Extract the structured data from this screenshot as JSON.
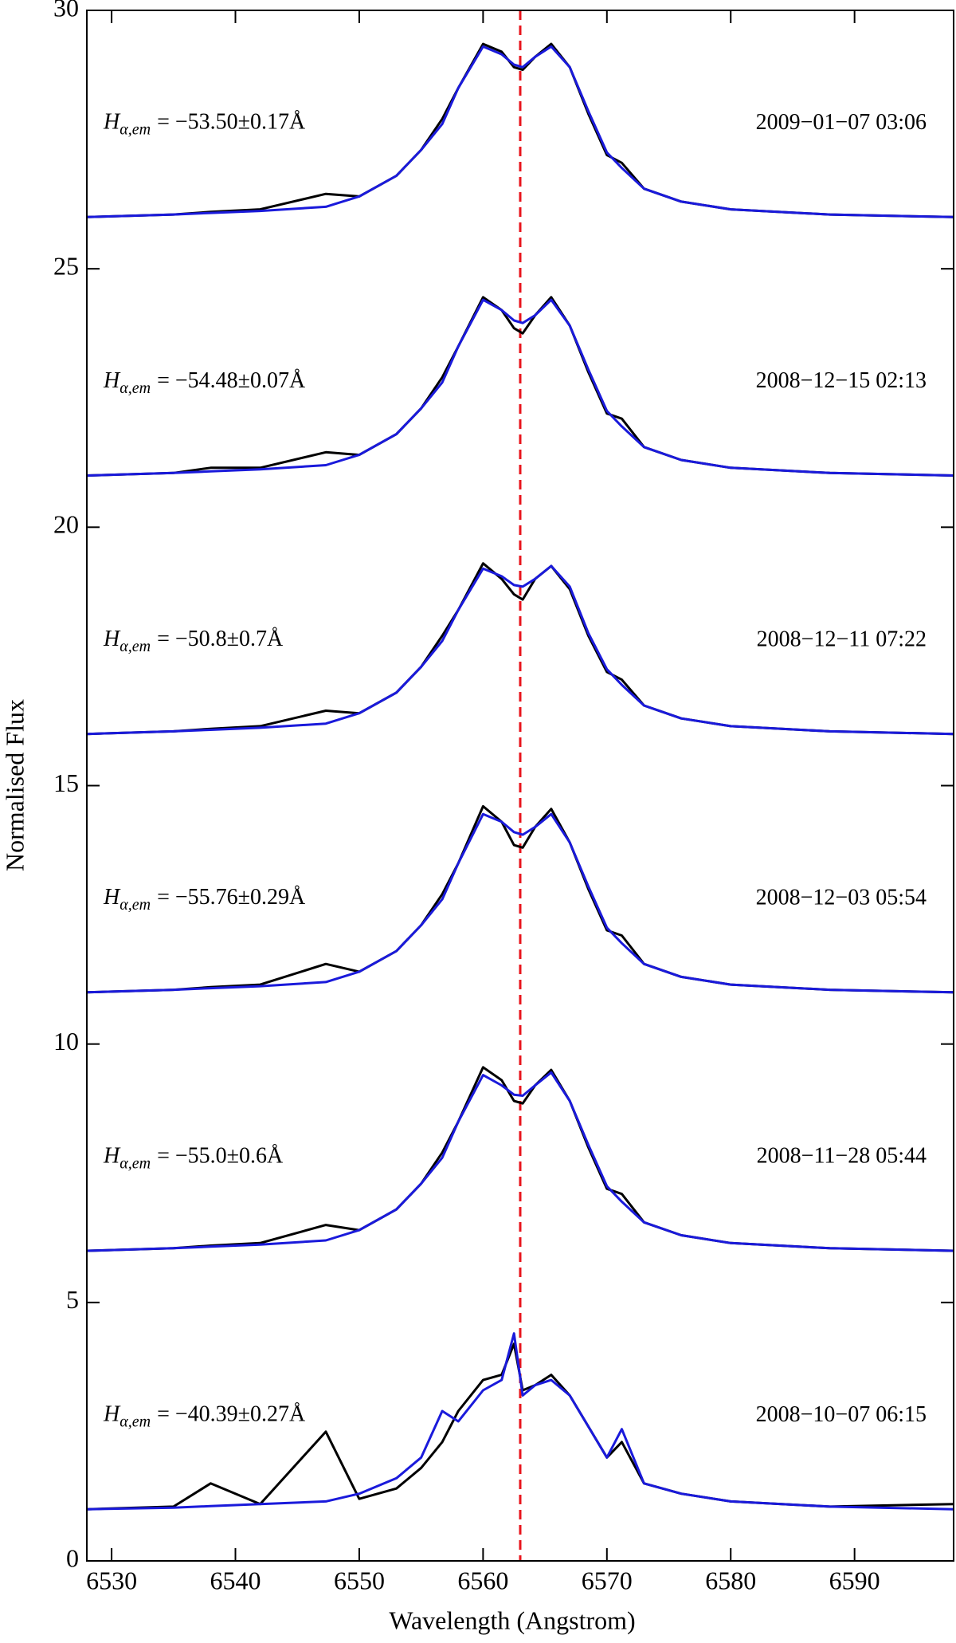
{
  "chart_data": {
    "type": "line",
    "xlabel": "Wavelength (Angstrom)",
    "ylabel": "Normalised Flux",
    "xlim": [
      6528,
      6598
    ],
    "ylim": [
      0,
      30
    ],
    "xticks": [
      6530,
      6540,
      6550,
      6560,
      6570,
      6580,
      6590
    ],
    "yticks": [
      0,
      5,
      10,
      15,
      20,
      25,
      30
    ],
    "reference_line": {
      "x": 6563,
      "color": "#e8141c"
    },
    "x": [
      6528,
      6535,
      6538,
      6542,
      6547.3,
      6550,
      6553,
      6555,
      6556.7,
      6558,
      6560,
      6561.5,
      6562.5,
      6563.2,
      6564.2,
      6565.5,
      6567,
      6568.5,
      6570,
      6571.2,
      6573,
      6576,
      6580,
      6588,
      6598
    ],
    "series": [
      {
        "color": "#000000",
        "values": [
          26.0,
          26.05,
          26.1,
          26.15,
          26.45,
          26.4,
          26.8,
          27.3,
          27.9,
          28.5,
          29.35,
          29.2,
          28.9,
          28.85,
          29.1,
          29.35,
          28.9,
          28.0,
          27.2,
          27.05,
          26.55,
          26.3,
          26.15,
          26.05,
          26.0
        ]
      },
      {
        "color": "#1a1adb",
        "values": [
          26.0,
          26.05,
          26.08,
          26.12,
          26.2,
          26.4,
          26.8,
          27.3,
          27.8,
          28.5,
          29.3,
          29.15,
          28.95,
          28.9,
          29.1,
          29.3,
          28.9,
          28.05,
          27.25,
          26.95,
          26.55,
          26.3,
          26.15,
          26.05,
          26.0
        ]
      },
      {
        "color": "#000000",
        "values": [
          21.0,
          21.05,
          21.15,
          21.15,
          21.45,
          21.4,
          21.8,
          22.3,
          22.9,
          23.5,
          24.45,
          24.2,
          23.85,
          23.75,
          24.1,
          24.45,
          23.9,
          23.0,
          22.2,
          22.1,
          21.55,
          21.3,
          21.15,
          21.05,
          21.0
        ]
      },
      {
        "color": "#1a1adb",
        "values": [
          21.0,
          21.05,
          21.08,
          21.12,
          21.2,
          21.4,
          21.8,
          22.3,
          22.8,
          23.5,
          24.4,
          24.2,
          24.0,
          23.95,
          24.1,
          24.4,
          23.9,
          23.05,
          22.25,
          21.95,
          21.55,
          21.3,
          21.15,
          21.05,
          21.0
        ]
      },
      {
        "color": "#000000",
        "values": [
          16.0,
          16.05,
          16.1,
          16.15,
          16.45,
          16.4,
          16.8,
          17.3,
          17.9,
          18.4,
          19.3,
          19.0,
          18.7,
          18.6,
          19.0,
          19.25,
          18.8,
          17.9,
          17.2,
          17.05,
          16.55,
          16.3,
          16.15,
          16.05,
          16.0
        ]
      },
      {
        "color": "#1a1adb",
        "values": [
          16.0,
          16.05,
          16.08,
          16.12,
          16.2,
          16.4,
          16.8,
          17.3,
          17.8,
          18.4,
          19.2,
          19.05,
          18.88,
          18.85,
          19.0,
          19.25,
          18.85,
          17.95,
          17.25,
          16.95,
          16.55,
          16.3,
          16.15,
          16.05,
          16.0
        ]
      },
      {
        "color": "#000000",
        "values": [
          11.0,
          11.05,
          11.1,
          11.15,
          11.55,
          11.4,
          11.8,
          12.3,
          12.9,
          13.5,
          14.6,
          14.3,
          13.85,
          13.8,
          14.2,
          14.55,
          13.9,
          13.0,
          12.2,
          12.1,
          11.55,
          11.3,
          11.15,
          11.05,
          11.0
        ]
      },
      {
        "color": "#1a1adb",
        "values": [
          11.0,
          11.05,
          11.08,
          11.12,
          11.2,
          11.4,
          11.8,
          12.3,
          12.8,
          13.5,
          14.45,
          14.3,
          14.1,
          14.05,
          14.2,
          14.45,
          13.9,
          13.05,
          12.25,
          11.95,
          11.55,
          11.3,
          11.15,
          11.05,
          11.0
        ]
      },
      {
        "color": "#000000",
        "values": [
          6.0,
          6.05,
          6.1,
          6.15,
          6.5,
          6.4,
          6.8,
          7.3,
          7.9,
          8.5,
          9.55,
          9.3,
          8.9,
          8.85,
          9.2,
          9.5,
          8.9,
          8.0,
          7.2,
          7.1,
          6.55,
          6.3,
          6.15,
          6.05,
          6.0
        ]
      },
      {
        "color": "#1a1adb",
        "values": [
          6.0,
          6.05,
          6.08,
          6.12,
          6.2,
          6.4,
          6.8,
          7.3,
          7.8,
          8.5,
          9.4,
          9.2,
          9.02,
          9.0,
          9.2,
          9.45,
          8.9,
          8.05,
          7.25,
          6.95,
          6.55,
          6.3,
          6.15,
          6.05,
          6.0
        ]
      },
      {
        "color": "#000000",
        "values": [
          1.0,
          1.05,
          1.5,
          1.1,
          2.5,
          1.2,
          1.4,
          1.8,
          2.3,
          2.9,
          3.5,
          3.6,
          4.2,
          3.3,
          3.4,
          3.6,
          3.2,
          2.6,
          2.0,
          2.3,
          1.5,
          1.3,
          1.15,
          1.05,
          1.1
        ]
      },
      {
        "color": "#1a1adb",
        "values": [
          1.0,
          1.03,
          1.06,
          1.1,
          1.15,
          1.3,
          1.6,
          2.0,
          2.9,
          2.7,
          3.3,
          3.5,
          4.4,
          3.2,
          3.4,
          3.5,
          3.2,
          2.6,
          2.0,
          2.55,
          1.5,
          1.3,
          1.15,
          1.05,
          1.0
        ]
      }
    ],
    "annotations": [
      {
        "symbol": "H",
        "subscript": "α,em",
        "text": "= −53.50±0.17Å",
        "date": "2009−01−07 03:06"
      },
      {
        "symbol": "H",
        "subscript": "α,em",
        "text": "= −54.48±0.07Å",
        "date": "2008−12−15 02:13"
      },
      {
        "symbol": "H",
        "subscript": "α,em",
        "text": "= −50.8±0.7Å",
        "date": "2008−12−11 07:22"
      },
      {
        "symbol": "H",
        "subscript": "α,em",
        "text": "= −55.76±0.29Å",
        "date": "2008−12−03 05:54"
      },
      {
        "symbol": "H",
        "subscript": "α,em",
        "text": "= −55.0±0.6Å",
        "date": "2008−11−28 05:44"
      },
      {
        "symbol": "H",
        "subscript": "α,em",
        "text": "= −40.39±0.27Å",
        "date": "2008−10−07 06:15"
      }
    ]
  }
}
